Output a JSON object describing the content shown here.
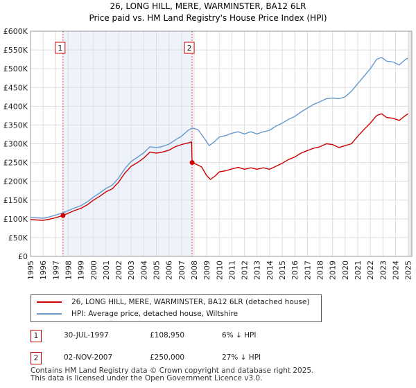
{
  "title": "26, LONG HILL, MERE, WARMINSTER, BA12 6LR",
  "subtitle": "Price paid vs. HM Land Registry's House Price Index (HPI)",
  "colors": {
    "property": "#cc0000",
    "hpi": "#6699cc",
    "grid": "#dddddd",
    "plot_bg": "#eef3fb"
  },
  "chart_data": {
    "type": "line",
    "title": "26, LONG HILL, MERE, WARMINSTER, BA12 6LR",
    "subtitle": "Price paid vs. HM Land Registry's House Price Index (HPI)",
    "xlim": [
      1995,
      2025.3
    ],
    "ylim": [
      0,
      600000
    ],
    "y_ticks": [
      0,
      50000,
      100000,
      150000,
      200000,
      250000,
      300000,
      350000,
      400000,
      450000,
      500000,
      550000,
      600000
    ],
    "y_tick_labels": [
      "£0",
      "£50K",
      "£100K",
      "£150K",
      "£200K",
      "£250K",
      "£300K",
      "£350K",
      "£400K",
      "£450K",
      "£500K",
      "£550K",
      "£600K"
    ],
    "x_ticks": [
      1995,
      1996,
      1997,
      1998,
      1999,
      2000,
      2001,
      2002,
      2003,
      2004,
      2005,
      2006,
      2007,
      2008,
      2009,
      2010,
      2011,
      2012,
      2013,
      2014,
      2015,
      2016,
      2017,
      2018,
      2019,
      2020,
      2021,
      2022,
      2023,
      2024,
      2025
    ],
    "x_tick_labels": [
      "1995",
      "1996",
      "1997",
      "1998",
      "1999",
      "2000",
      "2001",
      "2002",
      "2003",
      "2004",
      "2005",
      "2006",
      "2007",
      "2008",
      "2009",
      "2010",
      "2011",
      "2012",
      "2013",
      "2014",
      "2015",
      "2016",
      "2017",
      "2018",
      "2019",
      "2020",
      "2021",
      "2022",
      "2023",
      "2024",
      "2025"
    ],
    "shaded_range": [
      1997.58,
      2007.84
    ],
    "series": [
      {
        "name": "26, LONG HILL, MERE, WARMINSTER, BA12 6LR (detached house)",
        "color": "#cc0000",
        "points": [
          [
            1995.0,
            98000
          ],
          [
            1995.5,
            97000
          ],
          [
            1996.0,
            96000
          ],
          [
            1996.5,
            99000
          ],
          [
            1997.0,
            103000
          ],
          [
            1997.58,
            108950
          ],
          [
            1998.0,
            115000
          ],
          [
            1998.5,
            122000
          ],
          [
            1999.0,
            128000
          ],
          [
            1999.5,
            137000
          ],
          [
            2000.0,
            150000
          ],
          [
            2000.5,
            160000
          ],
          [
            2001.0,
            172000
          ],
          [
            2001.5,
            180000
          ],
          [
            2002.0,
            198000
          ],
          [
            2002.5,
            222000
          ],
          [
            2003.0,
            240000
          ],
          [
            2003.5,
            250000
          ],
          [
            2004.0,
            262000
          ],
          [
            2004.5,
            278000
          ],
          [
            2005.0,
            275000
          ],
          [
            2005.5,
            278000
          ],
          [
            2006.0,
            283000
          ],
          [
            2006.5,
            292000
          ],
          [
            2007.0,
            298000
          ],
          [
            2007.5,
            302000
          ],
          [
            2007.8,
            305000
          ],
          [
            2007.84,
            250000
          ],
          [
            2008.2,
            245000
          ],
          [
            2008.6,
            238000
          ],
          [
            2009.0,
            215000
          ],
          [
            2009.3,
            205000
          ],
          [
            2009.7,
            215000
          ],
          [
            2010.0,
            225000
          ],
          [
            2010.5,
            228000
          ],
          [
            2011.0,
            233000
          ],
          [
            2011.5,
            237000
          ],
          [
            2012.0,
            232000
          ],
          [
            2012.5,
            236000
          ],
          [
            2013.0,
            232000
          ],
          [
            2013.5,
            236000
          ],
          [
            2014.0,
            232000
          ],
          [
            2014.5,
            240000
          ],
          [
            2015.0,
            248000
          ],
          [
            2015.5,
            258000
          ],
          [
            2016.0,
            265000
          ],
          [
            2016.5,
            275000
          ],
          [
            2017.0,
            282000
          ],
          [
            2017.5,
            288000
          ],
          [
            2018.0,
            292000
          ],
          [
            2018.5,
            300000
          ],
          [
            2019.0,
            298000
          ],
          [
            2019.5,
            290000
          ],
          [
            2020.0,
            295000
          ],
          [
            2020.5,
            300000
          ],
          [
            2021.0,
            320000
          ],
          [
            2021.5,
            338000
          ],
          [
            2022.0,
            355000
          ],
          [
            2022.5,
            375000
          ],
          [
            2022.9,
            380000
          ],
          [
            2023.3,
            370000
          ],
          [
            2023.8,
            368000
          ],
          [
            2024.3,
            362000
          ],
          [
            2024.7,
            373000
          ],
          [
            2025.0,
            380000
          ]
        ]
      },
      {
        "name": "HPI: Average price, detached house, Wiltshire",
        "color": "#6699cc",
        "points": [
          [
            1995.0,
            104000
          ],
          [
            1995.5,
            103000
          ],
          [
            1996.0,
            102000
          ],
          [
            1996.5,
            105000
          ],
          [
            1997.0,
            110000
          ],
          [
            1997.58,
            116000
          ],
          [
            1998.0,
            122000
          ],
          [
            1998.5,
            129000
          ],
          [
            1999.0,
            135000
          ],
          [
            1999.5,
            145000
          ],
          [
            2000.0,
            158000
          ],
          [
            2000.5,
            169000
          ],
          [
            2001.0,
            181000
          ],
          [
            2001.5,
            190000
          ],
          [
            2002.0,
            209000
          ],
          [
            2002.5,
            234000
          ],
          [
            2003.0,
            253000
          ],
          [
            2003.5,
            264000
          ],
          [
            2004.0,
            276000
          ],
          [
            2004.5,
            292000
          ],
          [
            2005.0,
            290000
          ],
          [
            2005.5,
            293000
          ],
          [
            2006.0,
            299000
          ],
          [
            2006.5,
            310000
          ],
          [
            2007.0,
            320000
          ],
          [
            2007.5,
            335000
          ],
          [
            2007.84,
            342000
          ],
          [
            2008.3,
            338000
          ],
          [
            2008.8,
            315000
          ],
          [
            2009.2,
            295000
          ],
          [
            2009.6,
            305000
          ],
          [
            2010.0,
            318000
          ],
          [
            2010.5,
            322000
          ],
          [
            2011.0,
            328000
          ],
          [
            2011.5,
            332000
          ],
          [
            2012.0,
            326000
          ],
          [
            2012.5,
            332000
          ],
          [
            2013.0,
            326000
          ],
          [
            2013.5,
            332000
          ],
          [
            2014.0,
            336000
          ],
          [
            2014.5,
            347000
          ],
          [
            2015.0,
            355000
          ],
          [
            2015.5,
            365000
          ],
          [
            2016.0,
            373000
          ],
          [
            2016.5,
            385000
          ],
          [
            2017.0,
            395000
          ],
          [
            2017.5,
            405000
          ],
          [
            2018.0,
            412000
          ],
          [
            2018.5,
            420000
          ],
          [
            2019.0,
            422000
          ],
          [
            2019.5,
            420000
          ],
          [
            2020.0,
            425000
          ],
          [
            2020.5,
            440000
          ],
          [
            2021.0,
            460000
          ],
          [
            2021.5,
            480000
          ],
          [
            2022.0,
            500000
          ],
          [
            2022.5,
            525000
          ],
          [
            2022.9,
            530000
          ],
          [
            2023.3,
            520000
          ],
          [
            2023.8,
            518000
          ],
          [
            2024.3,
            510000
          ],
          [
            2024.8,
            525000
          ],
          [
            2025.0,
            528000
          ]
        ]
      }
    ],
    "markers": [
      {
        "label": "1",
        "x": 1997.58,
        "y": 108950
      },
      {
        "label": "2",
        "x": 2007.84,
        "y": 250000
      }
    ]
  },
  "legend": {
    "items": [
      {
        "label": "26, LONG HILL, MERE, WARMINSTER, BA12 6LR (detached house)",
        "color": "#cc0000"
      },
      {
        "label": "HPI: Average price, detached house, Wiltshire",
        "color": "#6699cc"
      }
    ]
  },
  "sales": [
    {
      "num": "1",
      "date": "30-JUL-1997",
      "price": "£108,950",
      "hpi": "6% ↓ HPI"
    },
    {
      "num": "2",
      "date": "02-NOV-2007",
      "price": "£250,000",
      "hpi": "27% ↓ HPI"
    }
  ],
  "footer": {
    "line1": "Contains HM Land Registry data © Crown copyright and database right 2025.",
    "line2": "This data is licensed under the Open Government Licence v3.0."
  }
}
